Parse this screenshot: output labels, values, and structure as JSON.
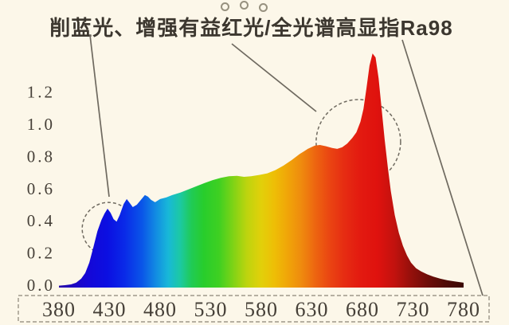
{
  "header": {
    "title": "削蓝光、增强有益红光/全光谱高显指Ra98",
    "decoration_dots_count": 3
  },
  "colors": {
    "background": "#fcf7e9",
    "title_text": "#3c372f",
    "axis_text": "#453f37",
    "annotation_stroke": "#6f6a60",
    "axis_box_stroke": "#8b8578"
  },
  "chart_data": {
    "type": "area",
    "title": "削蓝光、增强有益红光/全光谱高显指Ra98",
    "xlabel": "",
    "ylabel": "",
    "xlim": [
      380,
      780
    ],
    "ylim": [
      0,
      1.2
    ],
    "grid": false,
    "x_ticks": [
      380,
      430,
      480,
      530,
      580,
      630,
      680,
      730,
      780
    ],
    "y_ticks": [
      0.0,
      0.2,
      0.4,
      0.6,
      0.8,
      1.0,
      1.2
    ],
    "points": [
      [
        380,
        0.012
      ],
      [
        386,
        0.015
      ],
      [
        392,
        0.02
      ],
      [
        397,
        0.03
      ],
      [
        402,
        0.055
      ],
      [
        406,
        0.09
      ],
      [
        410,
        0.155
      ],
      [
        414,
        0.25
      ],
      [
        418,
        0.35
      ],
      [
        422,
        0.42
      ],
      [
        425,
        0.46
      ],
      [
        428,
        0.49
      ],
      [
        431,
        0.465
      ],
      [
        434,
        0.425
      ],
      [
        437,
        0.41
      ],
      [
        440,
        0.45
      ],
      [
        444,
        0.52
      ],
      [
        447,
        0.55
      ],
      [
        450,
        0.525
      ],
      [
        453,
        0.5
      ],
      [
        457,
        0.515
      ],
      [
        461,
        0.545
      ],
      [
        465,
        0.575
      ],
      [
        468,
        0.565
      ],
      [
        471,
        0.545
      ],
      [
        475,
        0.53
      ],
      [
        480,
        0.55
      ],
      [
        486,
        0.56
      ],
      [
        492,
        0.575
      ],
      [
        500,
        0.59
      ],
      [
        508,
        0.61
      ],
      [
        516,
        0.63
      ],
      [
        524,
        0.65
      ],
      [
        532,
        0.668
      ],
      [
        540,
        0.682
      ],
      [
        548,
        0.692
      ],
      [
        556,
        0.694
      ],
      [
        563,
        0.688
      ],
      [
        570,
        0.692
      ],
      [
        578,
        0.7
      ],
      [
        586,
        0.71
      ],
      [
        594,
        0.73
      ],
      [
        602,
        0.758
      ],
      [
        610,
        0.792
      ],
      [
        618,
        0.83
      ],
      [
        626,
        0.862
      ],
      [
        633,
        0.882
      ],
      [
        638,
        0.886
      ],
      [
        644,
        0.878
      ],
      [
        650,
        0.868
      ],
      [
        655,
        0.862
      ],
      [
        660,
        0.872
      ],
      [
        665,
        0.895
      ],
      [
        670,
        0.93
      ],
      [
        674,
        0.965
      ],
      [
        678,
        1.03
      ],
      [
        681,
        1.11
      ],
      [
        684,
        1.24
      ],
      [
        687,
        1.38
      ],
      [
        690,
        1.455
      ],
      [
        693,
        1.43
      ],
      [
        696,
        1.3
      ],
      [
        699,
        1.11
      ],
      [
        702,
        0.92
      ],
      [
        705,
        0.75
      ],
      [
        708,
        0.6
      ],
      [
        712,
        0.45
      ],
      [
        716,
        0.34
      ],
      [
        720,
        0.26
      ],
      [
        724,
        0.2
      ],
      [
        728,
        0.155
      ],
      [
        733,
        0.12
      ],
      [
        738,
        0.1
      ],
      [
        744,
        0.082
      ],
      [
        750,
        0.068
      ],
      [
        757,
        0.055
      ],
      [
        764,
        0.045
      ],
      [
        771,
        0.038
      ],
      [
        780,
        0.03
      ]
    ],
    "annotations": [
      {
        "label": "削蓝光",
        "type": "dashed-circle",
        "wavelength": 429,
        "center_value": 0.366,
        "radius_px": 33
      },
      {
        "label": "增强有益红光",
        "type": "dashed-circle",
        "wavelength": 676,
        "center_value": 0.906,
        "radius_px": 53
      },
      {
        "label": "全光谱高显指Ra98",
        "type": "dashed-box-around-x-axis"
      }
    ],
    "gradient_stops": [
      {
        "nm": 380,
        "color": "#2606a8"
      },
      {
        "nm": 408,
        "color": "#1507d6"
      },
      {
        "nm": 428,
        "color": "#0b0fe2"
      },
      {
        "nm": 445,
        "color": "#0a2ae8"
      },
      {
        "nm": 462,
        "color": "#0a55e8"
      },
      {
        "nm": 476,
        "color": "#128ce2"
      },
      {
        "nm": 488,
        "color": "#18b8d8"
      },
      {
        "nm": 500,
        "color": "#1cc9a2"
      },
      {
        "nm": 511,
        "color": "#20cb55"
      },
      {
        "nm": 523,
        "color": "#28cd2c"
      },
      {
        "nm": 538,
        "color": "#3ed022"
      },
      {
        "nm": 552,
        "color": "#7ed316"
      },
      {
        "nm": 566,
        "color": "#bed40e"
      },
      {
        "nm": 580,
        "color": "#e2d00a"
      },
      {
        "nm": 593,
        "color": "#eebe06"
      },
      {
        "nm": 606,
        "color": "#f0a508"
      },
      {
        "nm": 620,
        "color": "#ef8a0e"
      },
      {
        "nm": 634,
        "color": "#ed6410"
      },
      {
        "nm": 648,
        "color": "#ea4412"
      },
      {
        "nm": 662,
        "color": "#e62c12"
      },
      {
        "nm": 678,
        "color": "#e31a10"
      },
      {
        "nm": 695,
        "color": "#df120e"
      },
      {
        "nm": 712,
        "color": "#c1120e"
      },
      {
        "nm": 728,
        "color": "#95100b"
      },
      {
        "nm": 745,
        "color": "#6d0d08"
      },
      {
        "nm": 762,
        "color": "#500b06"
      },
      {
        "nm": 780,
        "color": "#3a0804"
      }
    ]
  }
}
